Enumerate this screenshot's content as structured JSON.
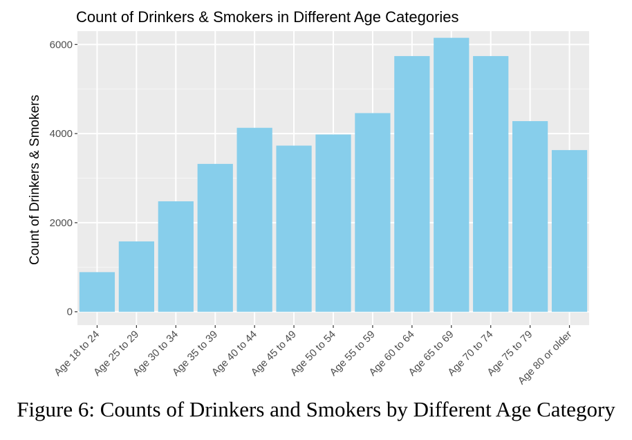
{
  "chart_data": {
    "type": "bar",
    "title": "Count of Drinkers & Smokers in Different Age Categories",
    "xlabel": "",
    "ylabel": "Count of Drinkers & Smokers",
    "categories": [
      "Age 18 to 24",
      "Age 25 to 29",
      "Age 30 to 34",
      "Age 35 to 39",
      "Age 40 to 44",
      "Age 45 to 49",
      "Age 50 to 54",
      "Age 55 to 59",
      "Age 60 to 64",
      "Age 65 to 69",
      "Age 70 to 74",
      "Age 75 to 79",
      "Age 80 or older"
    ],
    "values": [
      890,
      1580,
      2480,
      3320,
      4130,
      3730,
      3980,
      4460,
      5740,
      6150,
      5740,
      4280,
      3630
    ],
    "yticks": [
      0,
      2000,
      4000,
      6000
    ],
    "ytick_labels": [
      "0",
      "2000",
      "4000",
      "6000"
    ],
    "ylim": [
      -300,
      6300
    ],
    "grid": true,
    "bar_color": "#87ceeb",
    "panel_color": "#ebebeb"
  },
  "caption": "Figure 6: Counts of Drinkers and Smokers by Different Age Category"
}
